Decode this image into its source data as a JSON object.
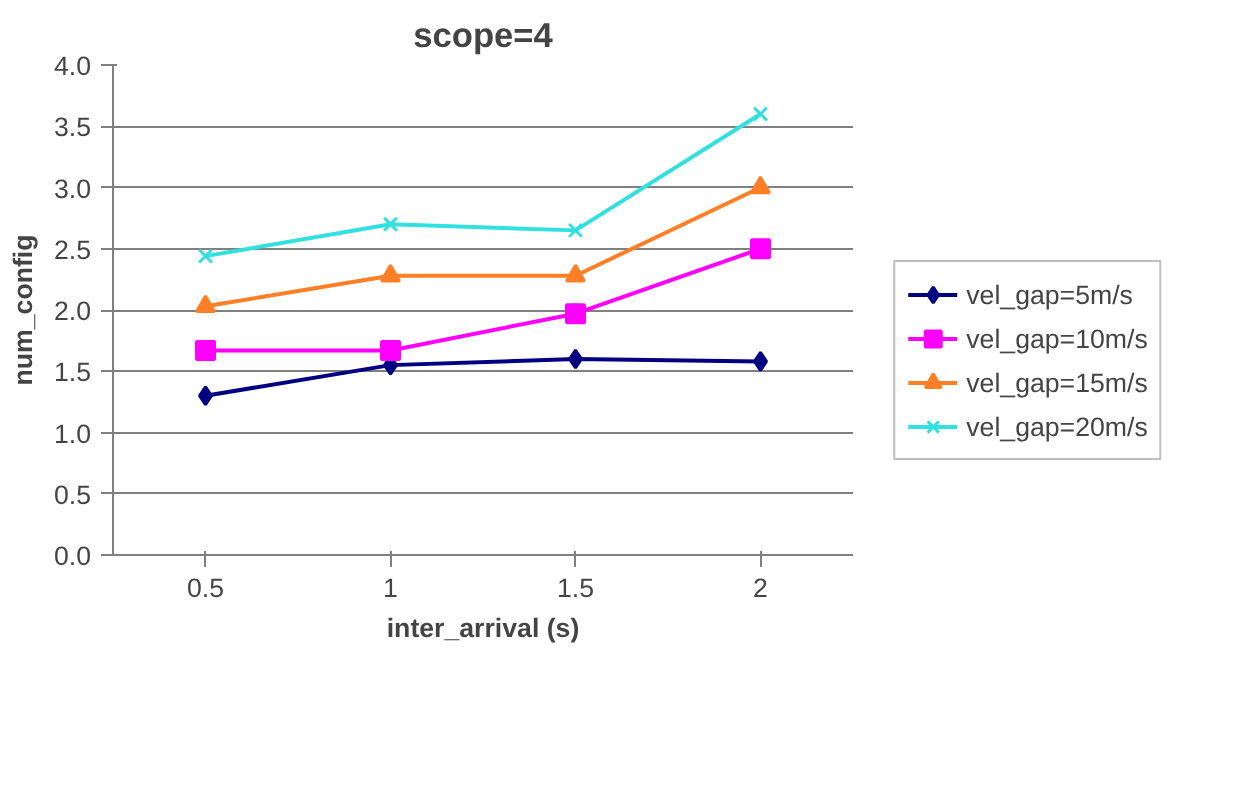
{
  "chart_data": {
    "type": "line",
    "title": "scope=4",
    "xlabel": "inter_arrival (s)",
    "ylabel": "num_config",
    "categories": [
      "0.5",
      "1",
      "1.5",
      "2"
    ],
    "ylim": [
      0,
      4
    ],
    "yticks": [
      {
        "value": 0,
        "label": "0.0"
      },
      {
        "value": 0.5,
        "label": "0.5"
      },
      {
        "value": 1,
        "label": "1.0"
      },
      {
        "value": 1.5,
        "label": "1.5"
      },
      {
        "value": 2,
        "label": "2.0"
      },
      {
        "value": 2.5,
        "label": "2.5"
      },
      {
        "value": 3,
        "label": "3.0"
      },
      {
        "value": 3.5,
        "label": "3.5"
      },
      {
        "value": 4,
        "label": "4.0"
      }
    ],
    "grid": "y",
    "legend": "right",
    "line_style": "solid",
    "series": [
      {
        "name": "vel_gap=5m/s",
        "color": "#000080",
        "marker": "diamond",
        "values": [
          1.3,
          1.55,
          1.6,
          1.58
        ]
      },
      {
        "name": "vel_gap=10m/s",
        "color": "#ff00ff",
        "marker": "square",
        "values": [
          1.67,
          1.67,
          1.97,
          2.5
        ]
      },
      {
        "name": "vel_gap=15m/s",
        "color": "#ff7f27",
        "marker": "triangle",
        "values": [
          2.03,
          2.28,
          2.28,
          3.0
        ]
      },
      {
        "name": "vel_gap=20m/s",
        "color": "#33e0e0",
        "marker": "cross",
        "values": [
          2.44,
          2.7,
          2.65,
          3.6
        ]
      }
    ]
  }
}
